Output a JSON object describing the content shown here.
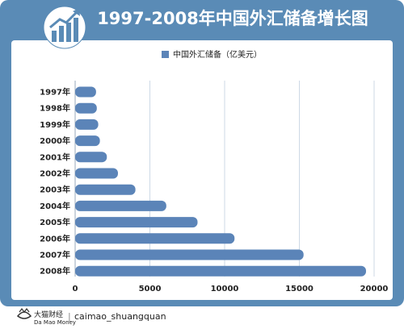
{
  "header": {
    "title": "1997-2008年中国外汇储备增长图",
    "icon": "bar-chart-trend-icon"
  },
  "colors": {
    "frame": "#5a8bb6",
    "bar": "#5b84b8",
    "grid": "#cdd9e6",
    "text": "#222222"
  },
  "chart_data": {
    "type": "bar",
    "orientation": "horizontal",
    "title": "1997-2008年中国外汇储备增长图",
    "legend": {
      "label": "中国外汇储备（亿美元）",
      "position": "top-center"
    },
    "categories": [
      "1997年",
      "1998年",
      "1999年",
      "2000年",
      "2001年",
      "2002年",
      "2003年",
      "2004年",
      "2005年",
      "2006年",
      "2007年",
      "2008年"
    ],
    "series": [
      {
        "name": "中国外汇储备（亿美元）",
        "values": [
          1399,
          1450,
          1547,
          1656,
          2122,
          2864,
          4033,
          6099,
          8189,
          10663,
          15282,
          19460
        ]
      }
    ],
    "xlim": [
      0,
      20000
    ],
    "xticks": [
      "0",
      "5000",
      "10000",
      "15000",
      "20000"
    ],
    "grid": true
  },
  "footer": {
    "brand_name": "大猫财经",
    "brand_sub": "Da Mao Money",
    "handle": "caimao_shuangquan",
    "separator": "|"
  }
}
